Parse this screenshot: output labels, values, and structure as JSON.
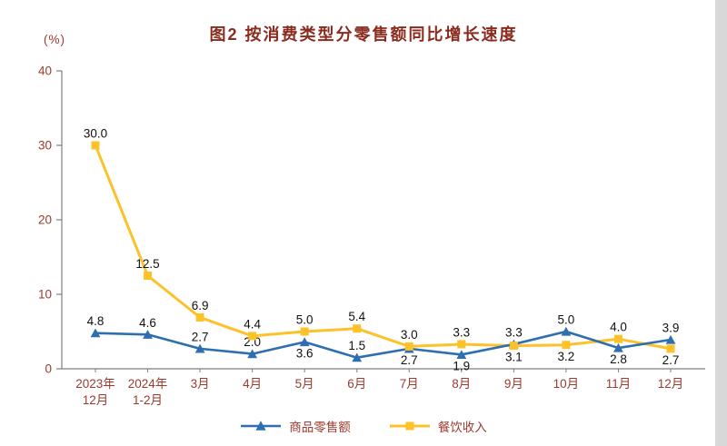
{
  "title": "图2 按消费类型分零售额同比增长速度",
  "y_axis_unit": "(%)",
  "colors": {
    "title_text": "#8a2b1f",
    "axis_text": "#9c3a2d",
    "axis_line": "#7f7f7f",
    "label_text": "#111111",
    "goods_blue": "#2d6fb0",
    "catering_gold": "#fdc12a"
  },
  "chart_data": {
    "type": "line",
    "categories": [
      [
        "2023年",
        "12月"
      ],
      [
        "2024年",
        "1-2月"
      ],
      [
        "3月"
      ],
      [
        "4月"
      ],
      [
        "5月"
      ],
      [
        "6月"
      ],
      [
        "7月"
      ],
      [
        "8月"
      ],
      [
        "9月"
      ],
      [
        "10月"
      ],
      [
        "11月"
      ],
      [
        "12月"
      ]
    ],
    "series": [
      {
        "name": "商品零售额",
        "color": "#2d6fb0",
        "marker": "triangle",
        "values": [
          4.8,
          4.6,
          2.7,
          2.0,
          3.6,
          1.5,
          2.7,
          1.9,
          3.3,
          5.0,
          2.8,
          3.9
        ],
        "label_pos": [
          "above",
          "above",
          "above",
          "above",
          "below",
          "above",
          "below",
          "below",
          "above",
          "above",
          "below",
          "above"
        ]
      },
      {
        "name": "餐饮收入",
        "color": "#fdc12a",
        "marker": "square",
        "values": [
          30.0,
          12.5,
          6.9,
          4.4,
          5.0,
          5.4,
          3.0,
          3.3,
          3.1,
          3.2,
          4.0,
          2.7
        ],
        "label_pos": [
          "above",
          "above",
          "above",
          "above",
          "above",
          "above",
          "above",
          "above",
          "below",
          "below",
          "above",
          "below"
        ]
      }
    ],
    "ylim": [
      0,
      40
    ],
    "yticks": [
      0,
      10,
      20,
      30,
      40
    ],
    "grid": false,
    "legend_position": "bottom",
    "title": "图2 按消费类型分零售额同比增长速度",
    "ylabel": "(%)"
  }
}
